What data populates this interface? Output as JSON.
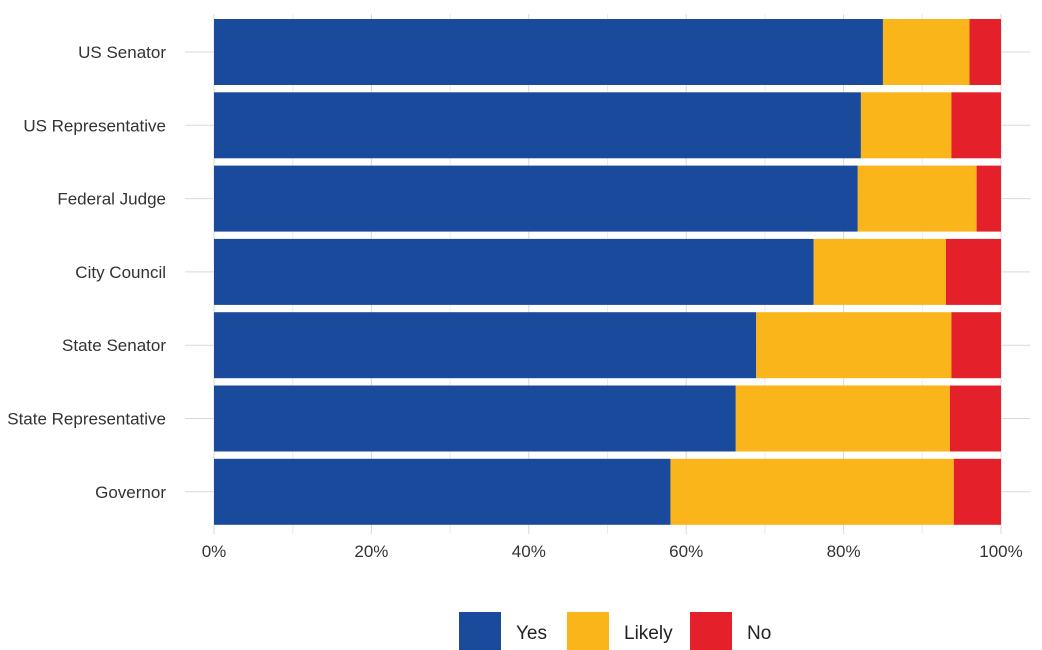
{
  "chart_data": {
    "type": "bar",
    "orientation": "horizontal",
    "stacked": "percent",
    "categories": [
      "US Senator",
      "US Representative",
      "Federal Judge",
      "City Council",
      "State Senator",
      "State Representative",
      "Governor"
    ],
    "series": [
      {
        "name": "Yes",
        "color": "#1a4a9c",
        "values": [
          85,
          82.2,
          81.8,
          76.2,
          68.9,
          66.3,
          58
        ]
      },
      {
        "name": "Likely",
        "color": "#f9b51a",
        "values": [
          11,
          11.5,
          15.1,
          16.8,
          24.8,
          27.2,
          36
        ]
      },
      {
        "name": "No",
        "color": "#e4202a",
        "values": [
          4,
          6.3,
          3.1,
          7,
          6.3,
          6.5,
          6
        ]
      }
    ],
    "xlim": [
      0,
      100
    ],
    "xticks": [
      "0%",
      "20%",
      "40%",
      "60%",
      "80%",
      "100%"
    ],
    "xlabel": "",
    "ylabel": "",
    "grid": true,
    "legend_position": "bottom"
  }
}
